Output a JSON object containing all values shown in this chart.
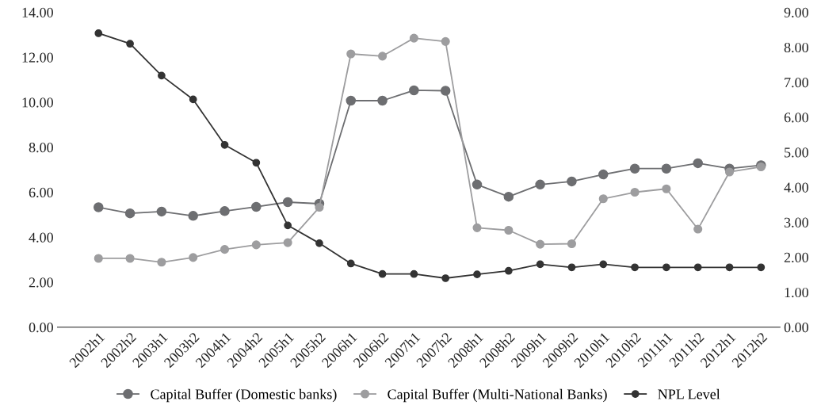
{
  "chart_data": {
    "type": "line",
    "categories": [
      "2002h1",
      "2002h2",
      "2003h1",
      "2003h2",
      "2004h1",
      "2004h2",
      "2005h1",
      "2005h2",
      "2006h1",
      "2006h2",
      "2007h1",
      "2007h2",
      "2008h1",
      "2008h2",
      "2009h1",
      "2009h2",
      "2010h1",
      "2010h2",
      "2011h1",
      "2011h2",
      "2012h1",
      "2012h2"
    ],
    "series": [
      {
        "name": "Capital Buffer (Domestic banks)",
        "color": "#6d6e71",
        "values": [
          5.33,
          5.06,
          5.14,
          4.95,
          5.16,
          5.35,
          5.56,
          5.49,
          10.07,
          10.07,
          10.53,
          10.51,
          6.34,
          5.8,
          6.34,
          6.48,
          6.79,
          7.05,
          7.05,
          7.29,
          7.05,
          7.2
        ]
      },
      {
        "name": "Capital Buffer (Multi-National Banks)",
        "color": "#9d9d9f",
        "values": [
          3.06,
          3.06,
          2.89,
          3.1,
          3.46,
          3.66,
          3.76,
          5.33,
          12.15,
          12.05,
          12.85,
          12.7,
          4.42,
          4.31,
          3.69,
          3.71,
          5.71,
          6.0,
          6.15,
          4.36,
          6.9,
          7.13
        ]
      },
      {
        "name": "NPL Level",
        "color": "#333333",
        "axis": "y2",
        "values": [
          8.4,
          8.1,
          7.19,
          6.51,
          5.21,
          4.7,
          2.91,
          2.4,
          1.82,
          1.52,
          1.52,
          1.4,
          1.51,
          1.61,
          1.8,
          1.71,
          1.8,
          1.71,
          1.71,
          1.71,
          1.71,
          1.71
        ]
      }
    ],
    "ylim": [
      0,
      14
    ],
    "yticks": [
      {
        "value": 0,
        "label": "0.00"
      },
      {
        "value": 2,
        "label": "2.00"
      },
      {
        "value": 4,
        "label": "4.00"
      },
      {
        "value": 6,
        "label": "6.00"
      },
      {
        "value": 8,
        "label": "8.00"
      },
      {
        "value": 10,
        "label": "10.00"
      },
      {
        "value": 12,
        "label": "12.00"
      },
      {
        "value": 14,
        "label": "14.00"
      }
    ],
    "y2lim": [
      0,
      9
    ],
    "y2ticks": [
      {
        "value": 0,
        "label": "0.00"
      },
      {
        "value": 1,
        "label": "1.00"
      },
      {
        "value": 2,
        "label": "2.00"
      },
      {
        "value": 3,
        "label": "3.00"
      },
      {
        "value": 4,
        "label": "4.00"
      },
      {
        "value": 5,
        "label": "5.00"
      },
      {
        "value": 6,
        "label": "6.00"
      },
      {
        "value": 7,
        "label": "7.00"
      },
      {
        "value": 8,
        "label": "8.00"
      },
      {
        "value": 9,
        "label": "9.00"
      }
    ],
    "marker": "circle",
    "line_style": "solid",
    "legend": "bottom",
    "grid": false
  }
}
